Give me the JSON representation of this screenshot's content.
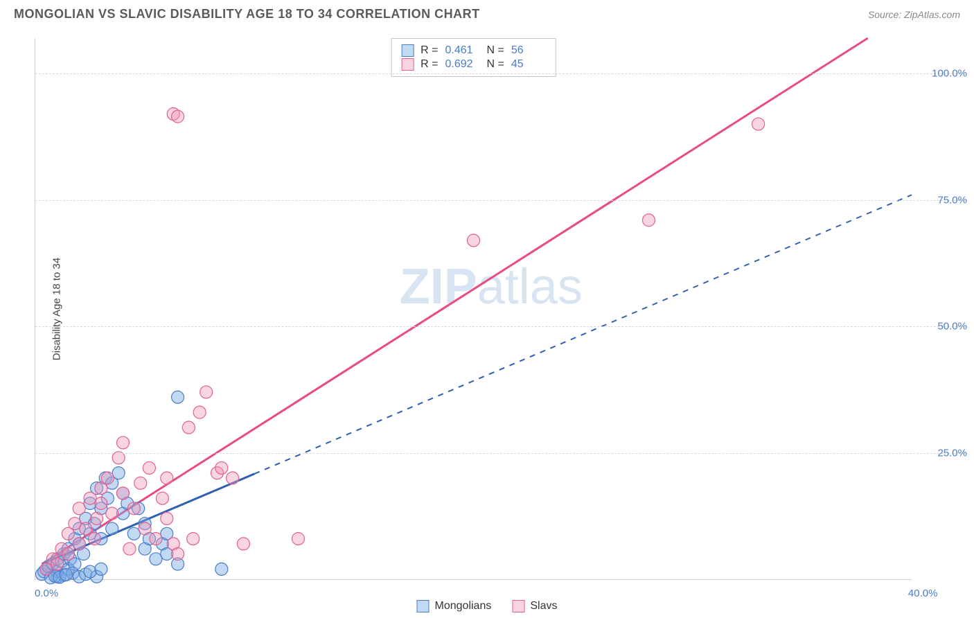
{
  "header": {
    "title": "MONGOLIAN VS SLAVIC DISABILITY AGE 18 TO 34 CORRELATION CHART",
    "source": "Source: ZipAtlas.com"
  },
  "chart": {
    "type": "scatter",
    "ylabel": "Disability Age 18 to 34",
    "background_color": "#ffffff",
    "grid_color": "#d9d9d9",
    "xlim": [
      0,
      40
    ],
    "ylim": [
      0,
      107
    ],
    "yticks": [
      25,
      50,
      75,
      100
    ],
    "ytick_labels": [
      "25.0%",
      "50.0%",
      "75.0%",
      "100.0%"
    ],
    "xtick_min_label": "0.0%",
    "xtick_max_label": "40.0%",
    "watermark": {
      "bold": "ZIP",
      "rest": "atlas"
    },
    "series": [
      {
        "name": "Mongolians",
        "marker_fill": "rgba(120,170,230,0.45)",
        "marker_stroke": "#4a7bc8",
        "marker_radius": 9,
        "R": "0.461",
        "N": "56",
        "line_color": "#2e5fb0",
        "line_width": 3,
        "line_dash": "none_then_dash",
        "line_solid_end_x": 10,
        "line_start": [
          0.3,
          3
        ],
        "line_end": [
          40,
          76
        ],
        "points": [
          [
            0.3,
            1
          ],
          [
            0.5,
            2
          ],
          [
            0.4,
            1.5
          ],
          [
            0.6,
            2.5
          ],
          [
            0.8,
            3
          ],
          [
            1,
            1.5
          ],
          [
            1,
            4
          ],
          [
            1.2,
            3.5
          ],
          [
            1.3,
            5
          ],
          [
            1.5,
            2
          ],
          [
            1.5,
            6
          ],
          [
            1.6,
            4
          ],
          [
            1.8,
            8
          ],
          [
            1.8,
            3
          ],
          [
            2,
            7
          ],
          [
            2,
            10
          ],
          [
            2.2,
            5
          ],
          [
            2.3,
            12
          ],
          [
            2.5,
            9
          ],
          [
            2.5,
            15
          ],
          [
            2.7,
            11
          ],
          [
            2.8,
            18
          ],
          [
            3,
            14
          ],
          [
            3,
            8
          ],
          [
            3.2,
            20
          ],
          [
            3.3,
            16
          ],
          [
            3.5,
            10
          ],
          [
            3.5,
            19
          ],
          [
            3.8,
            21
          ],
          [
            4,
            13
          ],
          [
            4,
            17
          ],
          [
            4.2,
            15
          ],
          [
            4.5,
            9
          ],
          [
            4.7,
            14
          ],
          [
            5,
            11
          ],
          [
            5,
            6
          ],
          [
            5.2,
            8
          ],
          [
            5.5,
            4
          ],
          [
            5.8,
            7
          ],
          [
            6,
            5
          ],
          [
            6,
            9
          ],
          [
            6.5,
            3
          ],
          [
            1,
            0.5
          ],
          [
            1.3,
            0.8
          ],
          [
            1.7,
            1.2
          ],
          [
            2,
            0.5
          ],
          [
            2.3,
            1
          ],
          [
            2.8,
            0.5
          ],
          [
            0.7,
            0.3
          ],
          [
            0.9,
            0.6
          ],
          [
            1.1,
            0.4
          ],
          [
            1.4,
            0.9
          ],
          [
            2.5,
            1.5
          ],
          [
            3,
            2
          ],
          [
            6.5,
            36
          ],
          [
            8.5,
            2
          ]
        ]
      },
      {
        "name": "Slavs",
        "marker_fill": "rgba(240,150,180,0.40)",
        "marker_stroke": "#e06090",
        "marker_radius": 9,
        "R": "0.692",
        "N": "45",
        "line_color": "#e84a82",
        "line_width": 3,
        "line_dash": "none",
        "line_start": [
          0.3,
          3
        ],
        "line_end": [
          38,
          107
        ],
        "points": [
          [
            0.5,
            2
          ],
          [
            0.8,
            4
          ],
          [
            1,
            3
          ],
          [
            1.2,
            6
          ],
          [
            1.5,
            9
          ],
          [
            1.5,
            5
          ],
          [
            1.8,
            11
          ],
          [
            2,
            7
          ],
          [
            2,
            14
          ],
          [
            2.3,
            10
          ],
          [
            2.5,
            16
          ],
          [
            2.7,
            8
          ],
          [
            2.8,
            12
          ],
          [
            3,
            15
          ],
          [
            3,
            18
          ],
          [
            3.3,
            20
          ],
          [
            3.5,
            13
          ],
          [
            3.8,
            24
          ],
          [
            4,
            17
          ],
          [
            4,
            27
          ],
          [
            4.3,
            6
          ],
          [
            4.5,
            14
          ],
          [
            4.8,
            19
          ],
          [
            5,
            10
          ],
          [
            5.2,
            22
          ],
          [
            5.5,
            8
          ],
          [
            5.8,
            16
          ],
          [
            6,
            12
          ],
          [
            6,
            20
          ],
          [
            6.3,
            7
          ],
          [
            6.5,
            5
          ],
          [
            7,
            30
          ],
          [
            7.2,
            8
          ],
          [
            7.5,
            33
          ],
          [
            7.8,
            37
          ],
          [
            8.3,
            21
          ],
          [
            8.5,
            22
          ],
          [
            9,
            20
          ],
          [
            9.5,
            7
          ],
          [
            12,
            8
          ],
          [
            6.3,
            92
          ],
          [
            6.5,
            91.5
          ],
          [
            20,
            67
          ],
          [
            28,
            71
          ],
          [
            33,
            90
          ]
        ]
      }
    ],
    "stats_label_R": "R  =",
    "stats_label_N": "N  =",
    "legend_swatch_border": {
      "mongolians": "#4a7bc8",
      "slavs": "#e06090"
    },
    "legend_swatch_fill": {
      "mongolians": "rgba(120,170,230,0.45)",
      "slavs": "rgba(240,150,180,0.40)"
    }
  }
}
